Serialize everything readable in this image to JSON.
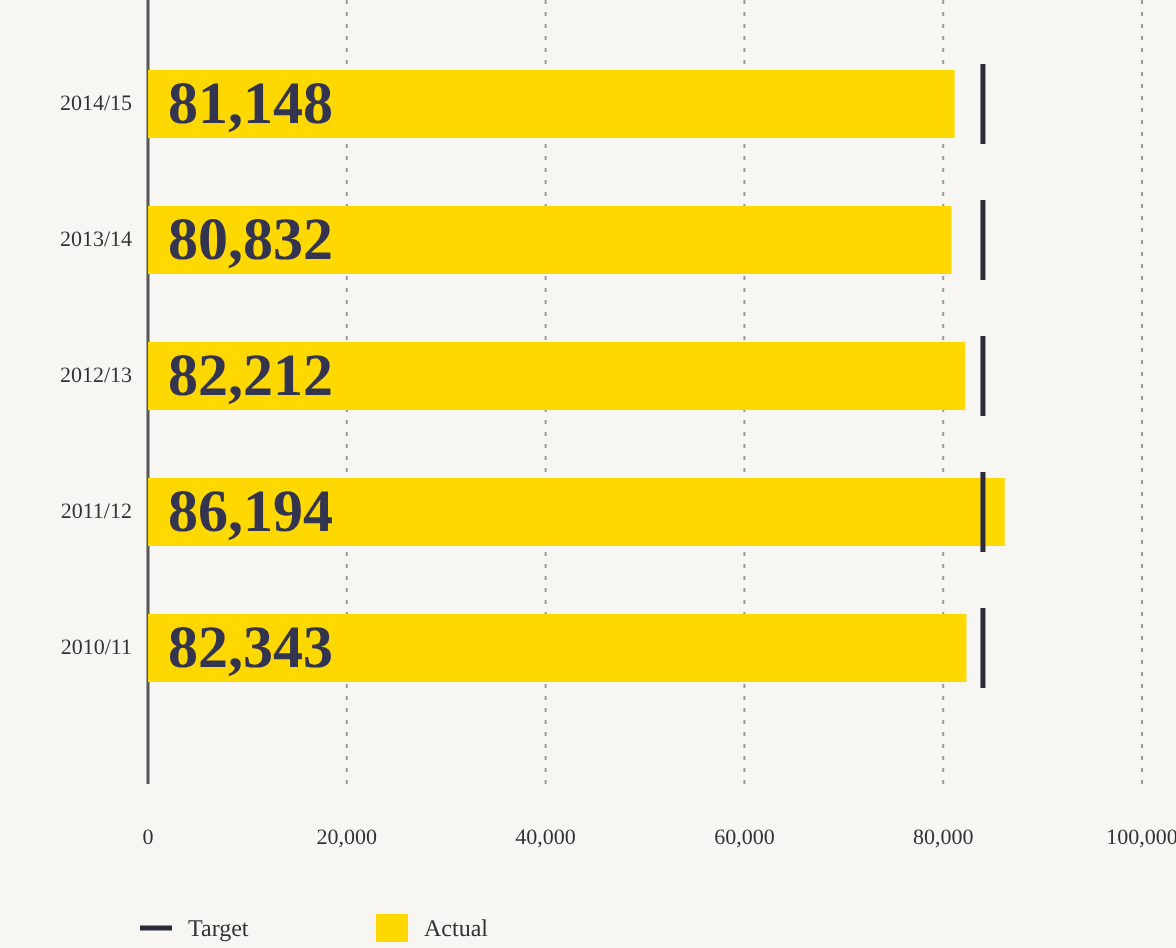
{
  "chart_data": {
    "type": "bar",
    "orientation": "horizontal",
    "categories": [
      "2014/15",
      "2013/14",
      "2012/13",
      "2011/12",
      "2010/11"
    ],
    "series": [
      {
        "name": "Actual",
        "color": "#ffd800",
        "values": [
          81148,
          80832,
          82212,
          86194,
          82343
        ],
        "value_labels": [
          "81,148",
          "80,832",
          "82,212",
          "86,194",
          "82,343"
        ]
      }
    ],
    "ref_lines": [
      {
        "axis": "x",
        "value": 84000,
        "label": "Target",
        "color": "#2b2b3a"
      }
    ],
    "xlim": [
      0,
      100000
    ],
    "xticks": [
      {
        "value": 0,
        "label": "0"
      },
      {
        "value": 20000,
        "label": "20,000"
      },
      {
        "value": 40000,
        "label": "40,000"
      },
      {
        "value": 60000,
        "label": "60,000"
      },
      {
        "value": 80000,
        "label": "80,000"
      },
      {
        "value": 100000,
        "label": "100,000"
      }
    ],
    "grid": "x",
    "legend": "bottom left"
  }
}
